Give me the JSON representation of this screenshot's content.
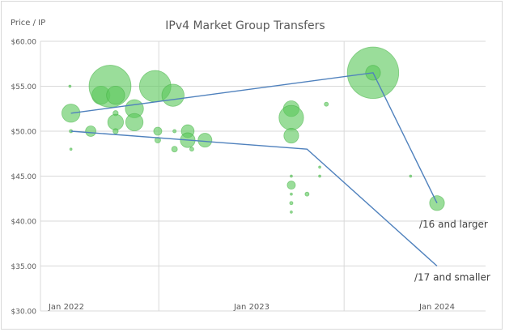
{
  "chart_data": {
    "type": "scatter",
    "title": "IPv4 Market Group Transfers",
    "ylabel": "Price / IP",
    "xlabel": "",
    "ylim": [
      30,
      60
    ],
    "y_ticks": [
      "$30.00",
      "$35.00",
      "$40.00",
      "$45.00",
      "$50.00",
      "$55.00",
      "$60.00"
    ],
    "x_tick_labels": [
      "Jan 2022",
      "Jan 2023",
      "Jan 2024"
    ],
    "grid": true,
    "series": [
      {
        "marker": "bubble",
        "color": "#5cc85c",
        "points": [
          {
            "x": "2022-01-08",
            "y": 55.0,
            "size": 1
          },
          {
            "x": "2022-01-10",
            "y": 52.0,
            "size": 60
          },
          {
            "x": "2022-01-10",
            "y": 50.0,
            "size": 2
          },
          {
            "x": "2022-01-10",
            "y": 48.0,
            "size": 1
          },
          {
            "x": "2022-02-18",
            "y": 50.0,
            "size": 20
          },
          {
            "x": "2022-03-10",
            "y": 54.0,
            "size": 60
          },
          {
            "x": "2022-03-28",
            "y": 55.0,
            "size": 320
          },
          {
            "x": "2022-04-08",
            "y": 54.0,
            "size": 60
          },
          {
            "x": "2022-04-08",
            "y": 52.0,
            "size": 5
          },
          {
            "x": "2022-04-08",
            "y": 51.0,
            "size": 45
          },
          {
            "x": "2022-04-08",
            "y": 50.0,
            "size": 5
          },
          {
            "x": "2022-05-15",
            "y": 52.5,
            "size": 60
          },
          {
            "x": "2022-05-15",
            "y": 51.0,
            "size": 55
          },
          {
            "x": "2022-06-25",
            "y": 55.0,
            "size": 180
          },
          {
            "x": "2022-06-30",
            "y": 50.0,
            "size": 12
          },
          {
            "x": "2022-06-30",
            "y": 49.0,
            "size": 6
          },
          {
            "x": "2022-07-30",
            "y": 54.0,
            "size": 90
          },
          {
            "x": "2022-08-02",
            "y": 50.0,
            "size": 2
          },
          {
            "x": "2022-08-02",
            "y": 48.0,
            "size": 6
          },
          {
            "x": "2022-08-28",
            "y": 50.0,
            "size": 30
          },
          {
            "x": "2022-08-28",
            "y": 49.0,
            "size": 40
          },
          {
            "x": "2022-09-05",
            "y": 48.0,
            "size": 3
          },
          {
            "x": "2022-10-01",
            "y": 49.0,
            "size": 35
          },
          {
            "x": "2023-03-20",
            "y": 52.5,
            "size": 45
          },
          {
            "x": "2023-03-20",
            "y": 51.5,
            "size": 110
          },
          {
            "x": "2023-03-20",
            "y": 49.5,
            "size": 40
          },
          {
            "x": "2023-03-20",
            "y": 44.0,
            "size": 12
          },
          {
            "x": "2023-03-20",
            "y": 45.0,
            "size": 1
          },
          {
            "x": "2023-03-20",
            "y": 43.0,
            "size": 1
          },
          {
            "x": "2023-03-20",
            "y": 42.0,
            "size": 2
          },
          {
            "x": "2023-03-20",
            "y": 41.0,
            "size": 1
          },
          {
            "x": "2023-04-20",
            "y": 43.0,
            "size": 3
          },
          {
            "x": "2023-05-15",
            "y": 46.0,
            "size": 1
          },
          {
            "x": "2023-05-15",
            "y": 45.0,
            "size": 1
          },
          {
            "x": "2023-05-28",
            "y": 53.0,
            "size": 3
          },
          {
            "x": "2023-08-28",
            "y": 56.5,
            "size": 480
          },
          {
            "x": "2023-08-28",
            "y": 56.5,
            "size": 40
          },
          {
            "x": "2023-11-10",
            "y": 45.0,
            "size": 1
          },
          {
            "x": "2024-01-01",
            "y": 42.0,
            "size": 40
          }
        ]
      },
      {
        "marker": "line",
        "color": "#4f81bd",
        "label": "/16 and larger",
        "points": [
          {
            "x": "2022-01-10",
            "y": 52.0
          },
          {
            "x": "2023-08-28",
            "y": 56.5
          },
          {
            "x": "2024-01-01",
            "y": 42.0
          }
        ]
      },
      {
        "marker": "line",
        "color": "#4f81bd",
        "label": "/17 and smaller",
        "points": [
          {
            "x": "2022-01-10",
            "y": 50.0
          },
          {
            "x": "2023-04-20",
            "y": 48.0
          },
          {
            "x": "2024-01-01",
            "y": 35.0
          }
        ]
      }
    ]
  }
}
